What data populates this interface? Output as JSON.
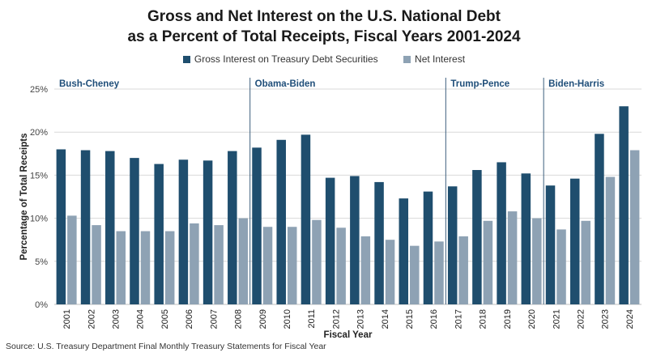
{
  "header": {
    "title_line1": "Gross and Net Interest on the U.S. National Debt",
    "title_line2": "as a Percent of Total Receipts, Fiscal Years 2001-2024"
  },
  "legend": {
    "gross_label": "Gross Interest on Treasury Debt Securities",
    "net_label": "Net Interest"
  },
  "footer": {
    "source": "Source: U.S. Treasury Department Final Monthly Treasury Statements for Fiscal Year"
  },
  "colors": {
    "gross": "#1f4e6e",
    "net": "#8ea2b4",
    "grid": "#d9d9d9",
    "divider": "#3d5f7d",
    "admin_text": "#1f4e79"
  },
  "chart_data": {
    "type": "bar",
    "title": "Gross and Net Interest on the U.S. National Debt as a Percent of Total Receipts, Fiscal Years 2001-2024",
    "xlabel": "Fiscal Year",
    "ylabel": "Percentage of Total Receipts",
    "ylim": [
      0,
      25
    ],
    "yticks": [
      "0%",
      "5%",
      "10%",
      "15%",
      "20%",
      "25%"
    ],
    "grid": true,
    "legend_position": "top-center",
    "categories": [
      "2001",
      "2002",
      "2003",
      "2004",
      "2005",
      "2006",
      "2007",
      "2008",
      "2009",
      "2010",
      "2011",
      "2012",
      "2013",
      "2014",
      "2015",
      "2016",
      "2017",
      "2018",
      "2019",
      "2020",
      "2021",
      "2022",
      "2023",
      "2024"
    ],
    "series": [
      {
        "name": "Gross Interest on Treasury Debt Securities",
        "values": [
          18.0,
          17.9,
          17.8,
          17.0,
          16.3,
          16.8,
          16.7,
          17.8,
          18.2,
          19.1,
          19.7,
          14.7,
          14.9,
          14.2,
          12.3,
          13.1,
          13.7,
          15.6,
          16.5,
          15.2,
          13.8,
          14.6,
          19.8,
          23.0
        ]
      },
      {
        "name": "Net Interest",
        "values": [
          10.3,
          9.2,
          8.5,
          8.5,
          8.5,
          9.4,
          9.2,
          10.0,
          9.0,
          9.0,
          9.8,
          8.9,
          7.9,
          7.5,
          6.8,
          7.3,
          7.9,
          9.7,
          10.8,
          10.0,
          8.7,
          9.7,
          14.8,
          17.9
        ]
      }
    ],
    "administrations": [
      {
        "label": "Bush-Cheney",
        "start_year": "2001"
      },
      {
        "label": "Obama-Biden",
        "start_year": "2009"
      },
      {
        "label": "Trump-Pence",
        "start_year": "2017"
      },
      {
        "label": "Biden-Harris",
        "start_year": "2021"
      }
    ]
  }
}
